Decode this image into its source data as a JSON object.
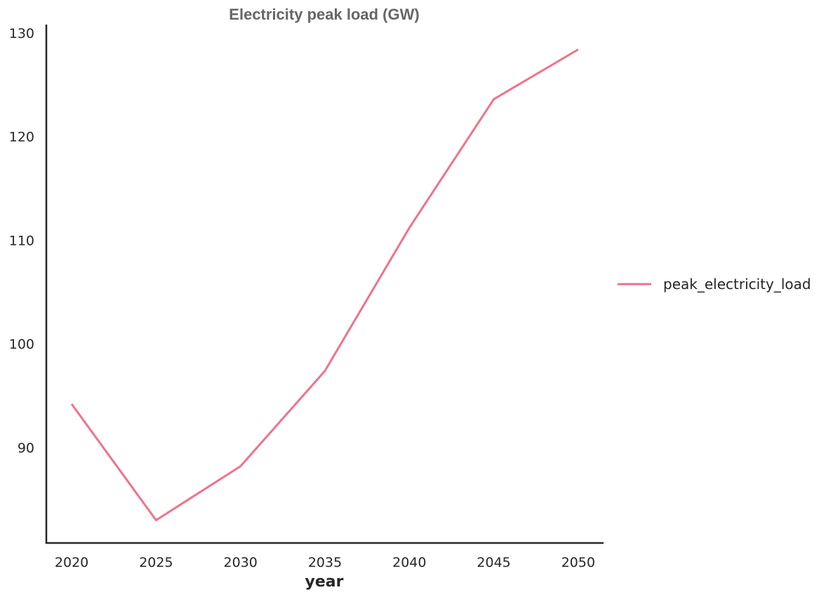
{
  "chart_data": {
    "type": "line",
    "title": "Electricity peak load (GW)",
    "xlabel": "year",
    "ylabel": "",
    "x": [
      2020,
      2025,
      2030,
      2035,
      2040,
      2045,
      2050
    ],
    "xticks": [
      2020,
      2025,
      2030,
      2035,
      2040,
      2045,
      2050
    ],
    "yticks": [
      90,
      100,
      110,
      120,
      130
    ],
    "xlim": [
      2018.5,
      2051.5
    ],
    "ylim": [
      80.8,
      130.8
    ],
    "series": [
      {
        "name": "peak_electricity_load",
        "color": "#f0728a",
        "values": [
          94.2,
          83.0,
          88.2,
          97.4,
          111.2,
          123.6,
          128.4
        ]
      }
    ],
    "grid": false,
    "legend_position": "center-right"
  }
}
